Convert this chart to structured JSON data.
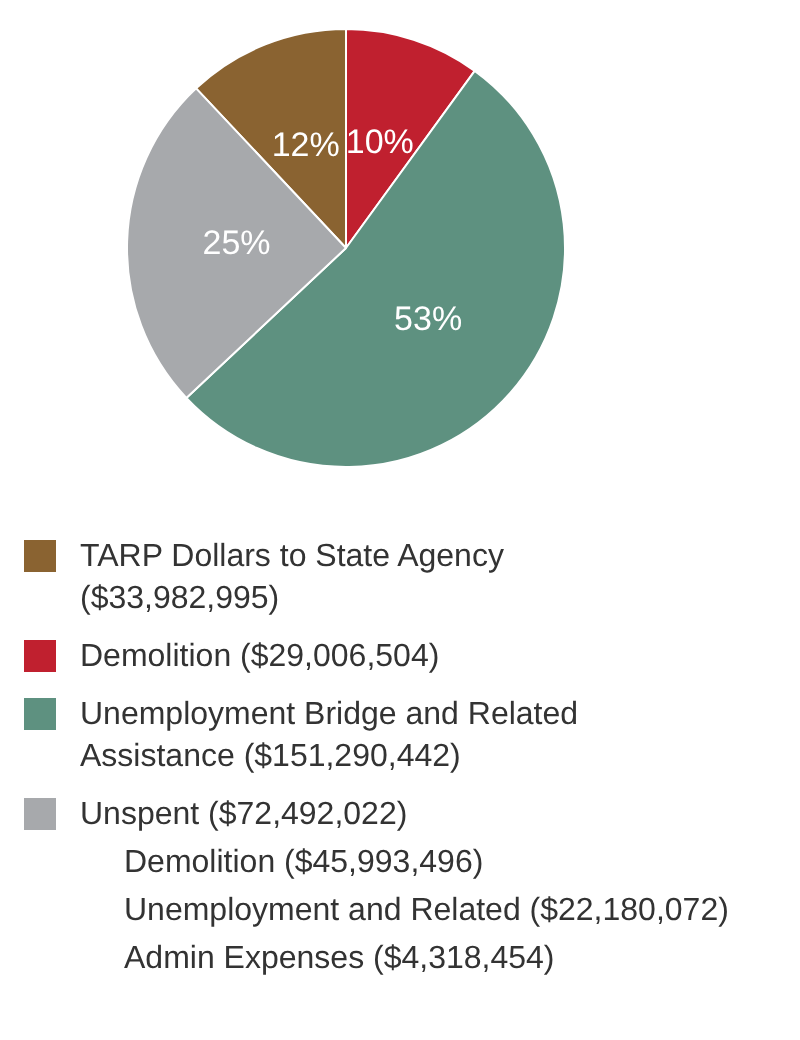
{
  "chart_data": {
    "type": "pie",
    "categories": [
      "TARP Dollars to State Agency ($33,982,995)",
      "Demolition ($29,006,504)",
      "Unemployment Bridge and Related Assistance ($151,290,442)",
      "Unspent ($72,492,022)"
    ],
    "values": [
      12,
      10,
      53,
      25
    ],
    "colors": [
      "#8a6331",
      "#c0202f",
      "#5e9180",
      "#a7a9ac"
    ],
    "value_labels": [
      "12%",
      "10%",
      "53%",
      "25%"
    ],
    "legend": "bottom",
    "annotations": [
      "Demolition ($45,993,496)",
      "Unemployment and Related ($22,180,072)",
      "Admin Expenses ($4,318,454)"
    ]
  }
}
